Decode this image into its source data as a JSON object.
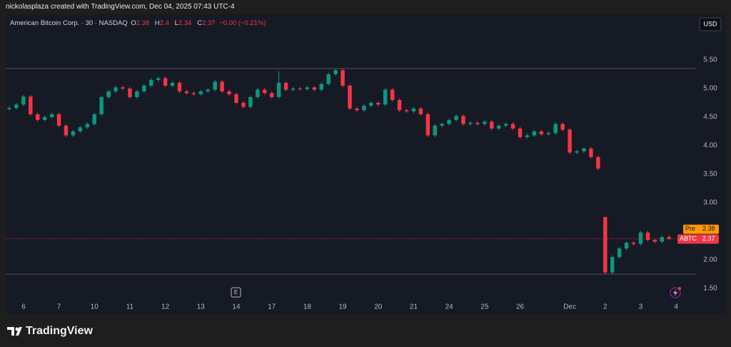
{
  "header": "nickolasplaza created with TradingView.com, Dec 04, 2025 07:43 UTC-4",
  "footer": {
    "brand": "TradingView"
  },
  "chart_data": {
    "type": "candlestick",
    "legend": {
      "symbol": "American Bitcoin Corp. · 30 · NASDAQ",
      "o_label": "O",
      "o": 2.38,
      "h_label": "H",
      "h": 2.4,
      "l_label": "L",
      "l": 2.34,
      "c_label": "C",
      "c": 2.37,
      "change": "−0.00 (−0.21%)"
    },
    "currency": "USD",
    "earnings_marker": "E",
    "pre_label": "Pre",
    "pre_price": 2.38,
    "symbol_label": "ABTC",
    "last_price": 2.37,
    "up_color": "#089981",
    "down_color": "#f23645",
    "grid": false,
    "x": [
      -2,
      -1,
      0,
      1,
      2,
      3,
      4,
      5,
      6,
      7,
      8,
      9,
      10,
      11,
      12,
      13,
      14,
      15,
      16,
      17,
      18,
      19,
      20,
      21,
      22,
      23,
      24,
      25,
      26,
      27,
      28,
      29,
      30,
      31,
      32,
      33,
      34,
      35,
      36,
      37,
      38,
      39,
      40,
      41,
      42,
      43,
      44,
      45,
      46,
      47,
      48,
      49,
      50,
      51,
      52,
      53,
      54,
      55,
      56,
      57,
      58,
      59,
      60,
      61,
      62,
      63,
      64,
      65,
      66,
      67,
      68,
      69,
      70,
      71,
      72,
      73,
      74,
      75,
      76,
      77,
      78,
      79,
      80,
      81,
      82,
      83,
      84,
      85,
      86,
      87,
      88,
      89,
      90,
      91
    ],
    "open": [
      4.64,
      4.66,
      4.72,
      4.86,
      4.55,
      4.45,
      4.5,
      4.55,
      4.35,
      4.18,
      4.25,
      4.32,
      4.38,
      4.55,
      4.85,
      4.95,
      5.02,
      5.0,
      4.85,
      4.95,
      5.05,
      5.15,
      5.18,
      5.05,
      5.1,
      4.95,
      4.92,
      4.9,
      4.95,
      4.98,
      5.12,
      4.95,
      4.9,
      4.75,
      4.68,
      4.85,
      4.98,
      4.92,
      4.85,
      5.1,
      4.98,
      5.0,
      4.99,
      5.02,
      4.98,
      5.08,
      5.25,
      5.32,
      5.05,
      4.65,
      4.62,
      4.7,
      4.75,
      4.72,
      4.98,
      4.8,
      4.62,
      4.6,
      4.65,
      4.55,
      4.18,
      4.35,
      4.38,
      4.45,
      4.52,
      4.38,
      4.4,
      4.38,
      4.42,
      4.3,
      4.35,
      4.38,
      4.3,
      4.15,
      4.18,
      4.25,
      4.2,
      4.22,
      4.38,
      4.28,
      3.88,
      3.9,
      3.95,
      3.8,
      2.75,
      1.78,
      2.05,
      2.2,
      2.3,
      2.28,
      2.48,
      2.35,
      2.32,
      2.4
    ],
    "high": [
      4.69,
      4.75,
      4.89,
      4.89,
      4.58,
      4.53,
      4.58,
      4.58,
      4.38,
      4.28,
      4.35,
      4.41,
      4.58,
      4.88,
      4.98,
      5.05,
      5.05,
      5.03,
      4.98,
      5.08,
      5.18,
      5.21,
      5.21,
      5.13,
      5.13,
      4.98,
      4.95,
      4.98,
      5.01,
      5.15,
      5.15,
      4.98,
      4.93,
      4.78,
      4.88,
      5.01,
      5.01,
      4.95,
      5.3,
      5.13,
      5.03,
      5.03,
      5.05,
      5.05,
      5.11,
      5.28,
      5.35,
      5.35,
      5.08,
      4.68,
      4.73,
      4.78,
      4.78,
      5.01,
      5.01,
      4.83,
      4.65,
      4.68,
      4.68,
      4.58,
      4.38,
      4.41,
      4.48,
      4.55,
      4.55,
      4.43,
      4.43,
      4.45,
      4.45,
      4.38,
      4.41,
      4.41,
      4.33,
      4.21,
      4.28,
      4.28,
      4.25,
      4.41,
      4.41,
      4.31,
      3.93,
      3.98,
      3.98,
      3.83,
      2.76,
      2.08,
      2.23,
      2.33,
      2.33,
      2.51,
      2.51,
      2.38,
      2.43,
      2.43
    ],
    "low": [
      4.61,
      4.63,
      4.69,
      4.52,
      4.42,
      4.42,
      4.47,
      4.32,
      4.15,
      4.15,
      4.22,
      4.29,
      4.35,
      4.52,
      4.82,
      4.92,
      4.97,
      4.82,
      4.82,
      4.92,
      5.02,
      5.12,
      5.02,
      5.02,
      4.92,
      4.89,
      4.87,
      4.87,
      4.92,
      4.95,
      4.92,
      4.87,
      4.72,
      4.65,
      4.65,
      4.82,
      4.89,
      4.82,
      4.82,
      4.95,
      4.95,
      4.96,
      4.96,
      4.95,
      4.95,
      5.05,
      5.22,
      5.02,
      4.62,
      4.59,
      4.59,
      4.67,
      4.69,
      4.69,
      4.77,
      4.59,
      4.57,
      4.57,
      4.52,
      4.15,
      4.15,
      4.32,
      4.35,
      4.42,
      4.35,
      4.35,
      4.35,
      4.35,
      4.27,
      4.27,
      4.32,
      4.27,
      4.12,
      4.12,
      4.15,
      4.17,
      4.17,
      4.19,
      4.25,
      3.85,
      3.85,
      3.87,
      3.77,
      3.57,
      1.75,
      1.75,
      2.02,
      2.17,
      2.25,
      2.25,
      2.32,
      2.29,
      2.29,
      2.34
    ],
    "close": [
      4.66,
      4.72,
      4.86,
      4.55,
      4.45,
      4.5,
      4.55,
      4.35,
      4.18,
      4.25,
      4.32,
      4.38,
      4.55,
      4.85,
      4.95,
      5.02,
      5.0,
      4.85,
      4.95,
      5.05,
      5.15,
      5.18,
      5.05,
      5.1,
      4.95,
      4.92,
      4.9,
      4.95,
      4.98,
      5.12,
      4.95,
      4.9,
      4.75,
      4.68,
      4.85,
      4.98,
      4.92,
      4.85,
      5.1,
      4.98,
      5.0,
      4.99,
      5.02,
      4.98,
      5.08,
      5.25,
      5.32,
      5.05,
      4.65,
      4.62,
      4.7,
      4.75,
      4.72,
      4.98,
      4.8,
      4.62,
      4.6,
      4.65,
      4.55,
      4.18,
      4.35,
      4.38,
      4.45,
      4.52,
      4.38,
      4.4,
      4.38,
      4.42,
      4.3,
      4.35,
      4.38,
      4.3,
      4.15,
      4.18,
      4.25,
      4.2,
      4.22,
      4.38,
      4.28,
      3.88,
      3.9,
      3.95,
      3.8,
      3.6,
      1.78,
      2.05,
      2.2,
      2.3,
      2.28,
      2.48,
      2.35,
      2.32,
      2.4,
      2.37
    ],
    "xlim": [
      -2.5,
      94.8
    ],
    "xticks": [
      {
        "value": 0,
        "label": "6"
      },
      {
        "value": 5,
        "label": "7"
      },
      {
        "value": 10,
        "label": "10"
      },
      {
        "value": 15,
        "label": "11"
      },
      {
        "value": 20,
        "label": "12"
      },
      {
        "value": 25,
        "label": "13"
      },
      {
        "value": 30,
        "label": "14"
      },
      {
        "value": 35,
        "label": "17"
      },
      {
        "value": 40,
        "label": "18"
      },
      {
        "value": 45,
        "label": "19"
      },
      {
        "value": 50,
        "label": "20"
      },
      {
        "value": 55,
        "label": "21"
      },
      {
        "value": 60,
        "label": "24"
      },
      {
        "value": 65,
        "label": "25"
      },
      {
        "value": 70,
        "label": "26"
      },
      {
        "value": 77,
        "label": "Dec"
      },
      {
        "value": 82,
        "label": "2"
      },
      {
        "value": 87,
        "label": "3"
      },
      {
        "value": 92,
        "label": "4"
      }
    ],
    "ylim": [
      1.05,
      6.3
    ],
    "yticks": [
      {
        "value": 1.5,
        "label": "1.50"
      },
      {
        "value": 2,
        "label": "2.00"
      },
      {
        "value": 3,
        "label": "3.00"
      },
      {
        "value": 3.5,
        "label": "3.50"
      },
      {
        "value": 4,
        "label": "4.00"
      },
      {
        "value": 4.5,
        "label": "4.50"
      },
      {
        "value": 5,
        "label": "5.00"
      },
      {
        "value": 5.5,
        "label": "5.50"
      }
    ]
  }
}
